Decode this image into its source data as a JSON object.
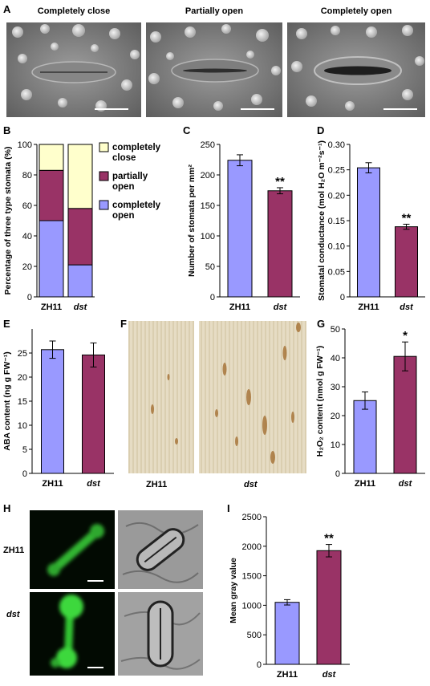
{
  "panel_letters": {
    "A": "A",
    "B": "B",
    "C": "C",
    "D": "D",
    "E": "E",
    "F": "F",
    "G": "G",
    "H": "H",
    "I": "I"
  },
  "panelA": {
    "titles": [
      "Completely close",
      "Partially open",
      "Completely open"
    ]
  },
  "panelF": {
    "labels": [
      "ZH11",
      "dst"
    ]
  },
  "panelH": {
    "row_labels": [
      "ZH11",
      "dst"
    ]
  },
  "colors": {
    "zh11": "#9999ff",
    "dst": "#993366",
    "close": "#ffffcc"
  },
  "chart_data": [
    {
      "id": "B",
      "type": "bar",
      "stacked": true,
      "categories": [
        "ZH11",
        "dst"
      ],
      "series": [
        {
          "name": "completely open",
          "values": [
            50,
            21
          ],
          "color": "#9999ff"
        },
        {
          "name": "partially open",
          "values": [
            33,
            37
          ],
          "color": "#993366"
        },
        {
          "name": "completely close",
          "values": [
            17,
            42
          ],
          "color": "#ffffcc"
        }
      ],
      "legend_lines": [
        [
          "completely",
          "close"
        ],
        [
          "partially",
          "open"
        ],
        [
          "completely",
          "open"
        ]
      ],
      "ylabel": "Percentage of three type stomata (%)",
      "ylim": [
        0,
        100
      ],
      "yticks": [
        0,
        20,
        40,
        60,
        80,
        100
      ]
    },
    {
      "id": "C",
      "type": "bar",
      "categories": [
        "ZH11",
        "dst"
      ],
      "values": [
        224,
        174
      ],
      "errors": [
        9,
        5
      ],
      "significance": [
        "",
        "**"
      ],
      "ylabel": "Number of stomata per mm²",
      "ylim": [
        0,
        250
      ],
      "yticks": [
        0,
        50,
        100,
        150,
        200,
        250
      ]
    },
    {
      "id": "D",
      "type": "bar",
      "categories": [
        "ZH11",
        "dst"
      ],
      "values": [
        0.254,
        0.138
      ],
      "errors": [
        0.01,
        0.005
      ],
      "significance": [
        "",
        "**"
      ],
      "ylabel": "Stomatal conductance (mol H₂O m⁻²s⁻¹)",
      "ylim": [
        0,
        0.3
      ],
      "yticks": [
        "0",
        "0.05",
        "0.10",
        "0.15",
        "0.20",
        "0.25",
        "0.30"
      ]
    },
    {
      "id": "E",
      "type": "bar",
      "categories": [
        "ZH11",
        "dst"
      ],
      "values": [
        25.7,
        24.6
      ],
      "errors": [
        1.8,
        2.5
      ],
      "significance": [
        "",
        ""
      ],
      "ylabel": "ABA content (ng g FW⁻¹)",
      "ylim": [
        0,
        30
      ],
      "yticks": [
        0,
        5,
        10,
        15,
        20,
        25
      ]
    },
    {
      "id": "G",
      "type": "bar",
      "categories": [
        "ZH11",
        "dst"
      ],
      "values": [
        25.2,
        40.5
      ],
      "errors": [
        3,
        5
      ],
      "significance": [
        "",
        "*"
      ],
      "ylabel": "H₂O₂ content (nmol g FW⁻¹)",
      "ylim": [
        0,
        50
      ],
      "yticks": [
        0,
        10,
        20,
        30,
        40,
        50
      ]
    },
    {
      "id": "I",
      "type": "bar",
      "categories": [
        "ZH11",
        "dst"
      ],
      "values": [
        1050,
        1925
      ],
      "errors": [
        45,
        105
      ],
      "significance": [
        "",
        "**"
      ],
      "ylabel": "Mean gray value",
      "ylim": [
        0,
        2500
      ],
      "yticks": [
        0,
        500,
        1000,
        1500,
        2000,
        2500
      ]
    }
  ]
}
